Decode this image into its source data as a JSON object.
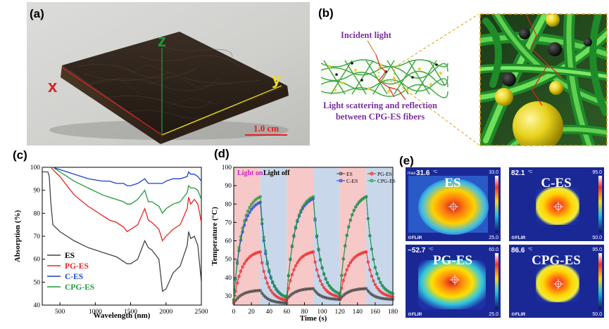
{
  "panels": {
    "a": {
      "label": "(a)",
      "axis_x": "x",
      "axis_y": "y",
      "axis_z": "z",
      "scale_bar": "1.0 cm"
    },
    "b": {
      "label": "(b)",
      "incident_light": "Incident light",
      "scatter_line1": "Light scattering and reflection",
      "scatter_line2": "between CPG-ES fibers"
    },
    "e": {
      "label": "(e)",
      "tiles": [
        {
          "name": "ES",
          "temp": "31.6",
          "max": "33.0",
          "min": "25.0",
          "prefix": "max"
        },
        {
          "name": "C-ES",
          "temp": "82.1",
          "max": "95.0",
          "min": "50.0",
          "prefix": ""
        },
        {
          "name": "PG-ES",
          "temp": "~52.7",
          "max": "60.0",
          "min": "25.0",
          "prefix": ""
        },
        {
          "name": "CPG-ES",
          "temp": "86.6",
          "max": "95.0",
          "min": "50.0",
          "prefix": ""
        }
      ],
      "deg_unit": "°C",
      "brand": "FLIR"
    }
  },
  "chart_data": [
    {
      "panel": "(c)",
      "type": "line",
      "xlabel": "Wavelength (nm)",
      "ylabel": "Absorption (%)",
      "xlim": [
        250,
        2500
      ],
      "ylim": [
        40,
        100
      ],
      "xticks": [
        500,
        1000,
        1500,
        2000,
        2500
      ],
      "yticks": [
        40,
        50,
        60,
        70,
        80,
        90,
        100
      ],
      "x": [
        250,
        330,
        350,
        370,
        400,
        500,
        700,
        900,
        1100,
        1200,
        1300,
        1400,
        1450,
        1500,
        1600,
        1700,
        1750,
        1800,
        1900,
        1950,
        2000,
        2100,
        2200,
        2300,
        2320,
        2350,
        2400,
        2450,
        2500
      ],
      "series": [
        {
          "name": "ES",
          "color": "#444444",
          "values": [
            98,
            98,
            96,
            85,
            75,
            72,
            68,
            65,
            63,
            62,
            61,
            59,
            58,
            58,
            60,
            68,
            65,
            64,
            60,
            46,
            47,
            54,
            57,
            66,
            72,
            69,
            70,
            66,
            50
          ]
        },
        {
          "name": "PG-ES",
          "color": "#ee2222",
          "values": [
            100,
            100,
            100,
            100,
            99,
            96,
            88,
            83,
            79,
            77,
            76,
            74,
            72,
            73,
            75,
            82,
            77,
            76,
            73,
            68,
            70,
            73,
            75,
            82,
            87,
            84,
            86,
            84,
            76
          ]
        },
        {
          "name": "C-ES",
          "color": "#1f3fd0",
          "values": [
            100,
            100,
            100,
            100,
            100,
            99,
            97,
            95,
            94,
            94,
            93,
            93,
            92,
            92,
            93,
            95,
            93,
            93,
            93,
            93,
            94,
            95,
            95,
            96,
            98,
            97,
            97,
            96,
            94
          ]
        },
        {
          "name": "CPG-ES",
          "color": "#1f9a3a",
          "values": [
            100,
            100,
            100,
            100,
            100,
            98,
            94,
            91,
            88,
            87,
            86,
            85,
            84,
            84,
            86,
            90,
            85,
            85,
            83,
            80,
            82,
            84,
            85,
            89,
            92,
            91,
            91,
            90,
            86
          ]
        }
      ],
      "legend": "bottom-left"
    },
    {
      "panel": "(d)",
      "type": "line",
      "xlabel": "Time (s)",
      "ylabel": "Temperature (°C)",
      "xlim": [
        0,
        180
      ],
      "ylim": [
        25,
        100
      ],
      "xticks": [
        0,
        20,
        40,
        60,
        80,
        100,
        120,
        140,
        160,
        180
      ],
      "yticks": [
        30,
        40,
        50,
        60,
        70,
        80,
        90,
        100
      ],
      "light_on_label": "Light on",
      "light_off_label": "Light off",
      "light_on_intervals": [
        [
          0,
          30
        ],
        [
          60,
          90
        ],
        [
          120,
          150
        ]
      ],
      "light_off_intervals": [
        [
          30,
          60
        ],
        [
          90,
          120
        ],
        [
          150,
          180
        ]
      ],
      "cycles": [
        {
          "start": 0,
          "ES": [
            26,
            33
          ],
          "PG-ES": [
            27,
            54
          ],
          "C-ES": [
            28,
            81
          ],
          "CPG-ES": [
            28,
            84
          ]
        },
        {
          "start": 60,
          "ES": [
            28,
            34
          ],
          "PG-ES": [
            29,
            54
          ],
          "C-ES": [
            30,
            83
          ],
          "CPG-ES": [
            30,
            84
          ]
        },
        {
          "start": 120,
          "ES": [
            28,
            34
          ],
          "PG-ES": [
            29,
            54
          ],
          "C-ES": [
            30,
            84
          ],
          "CPG-ES": [
            30,
            84
          ]
        }
      ],
      "series": [
        {
          "name": "ES",
          "color": "#444444"
        },
        {
          "name": "PG-ES",
          "color": "#ee2222"
        },
        {
          "name": "C-ES",
          "color": "#1f3fd0"
        },
        {
          "name": "CPG-ES",
          "color": "#1f9a3a"
        }
      ],
      "legend": "top-right"
    }
  ]
}
